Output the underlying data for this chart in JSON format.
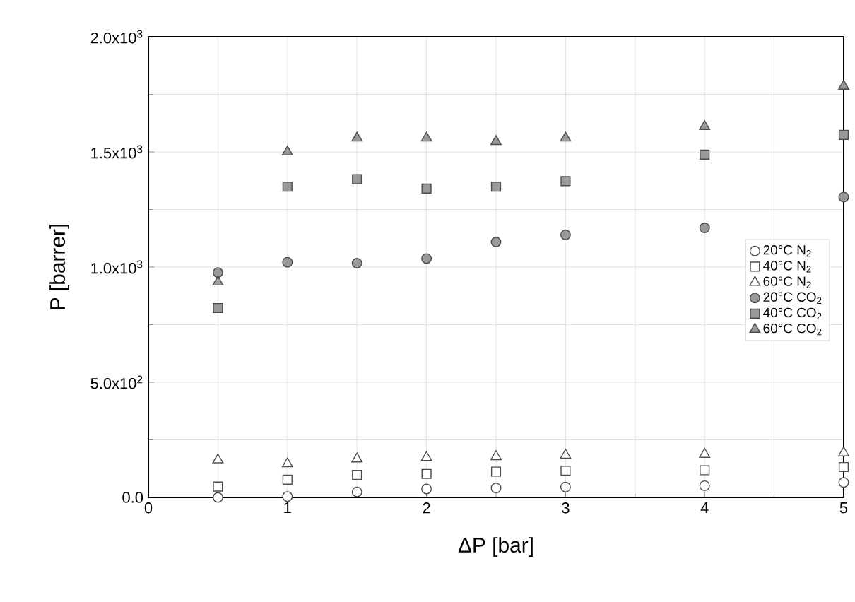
{
  "chart_data": {
    "type": "scatter",
    "xlabel": "ΔP [bar]",
    "ylabel": "P [barrer]",
    "x": [
      0.5,
      1,
      1.5,
      2,
      2.5,
      3,
      4,
      5
    ],
    "xlim": [
      0,
      5
    ],
    "ylim": [
      0,
      2000
    ],
    "xticks": [
      0,
      1,
      2,
      3,
      4,
      5
    ],
    "yticks": [
      {
        "value": 0,
        "label": "0.0"
      },
      {
        "value": 500,
        "label": "5.0x10$^{2}$"
      },
      {
        "value": 1000,
        "label": "1.0x10$^{3}$"
      },
      {
        "value": 1500,
        "label": "1.5x10$^{3}$"
      },
      {
        "value": 2000,
        "label": "2.0x10$^{3}$"
      }
    ],
    "grid": true,
    "legend": "right",
    "series": [
      {
        "name": "20°C N$_{2}$",
        "color": "#ffffff",
        "marker": "circle",
        "values": [
          0,
          4,
          24,
          37,
          41,
          45,
          51,
          65
        ]
      },
      {
        "name": "40°C N$_{2}$",
        "color": "#ffffff",
        "marker": "square",
        "values": [
          47,
          77,
          98,
          102,
          112,
          116,
          118,
          132
        ]
      },
      {
        "name": "60°C N$_{2}$",
        "color": "#ffffff",
        "marker": "triangle",
        "values": [
          163,
          146,
          167,
          173,
          177,
          183,
          187,
          193
        ]
      },
      {
        "name": "20°C CO$_{2}$",
        "color": "#999999",
        "marker": "circle",
        "values": [
          976,
          1021,
          1017,
          1037,
          1109,
          1140,
          1170,
          1304
        ]
      },
      {
        "name": "40°C CO$_{2}$",
        "color": "#999999",
        "marker": "square",
        "values": [
          822,
          1349,
          1382,
          1341,
          1349,
          1373,
          1488,
          1574
        ]
      },
      {
        "name": "60°C CO$_{2}$",
        "color": "#999999",
        "marker": "triangle",
        "values": [
          935,
          1500,
          1560,
          1560,
          1545,
          1560,
          1610,
          1785
        ]
      }
    ]
  }
}
